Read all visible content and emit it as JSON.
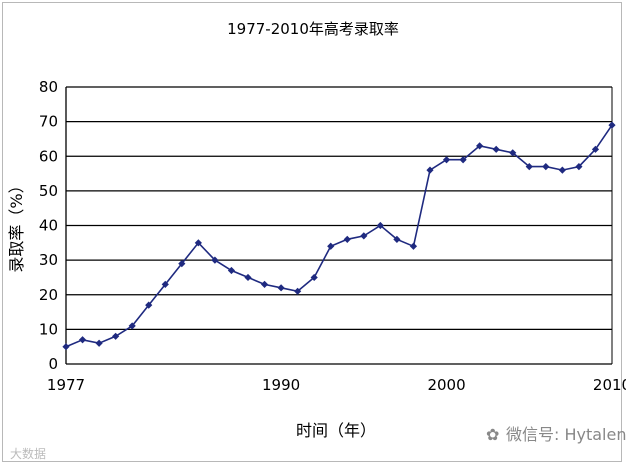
{
  "chart_data": {
    "type": "line",
    "title": "1977-2010年高考录取率",
    "xlabel": "时间（年）",
    "ylabel": "录取率（%）",
    "xlim": [
      1977,
      2010
    ],
    "ylim": [
      0,
      80
    ],
    "yticks": [
      0,
      10,
      20,
      30,
      40,
      50,
      60,
      70,
      80
    ],
    "xticks": [
      1977,
      1990,
      2000,
      2010
    ],
    "grid": "horizontal",
    "line_color": "#1f2a80",
    "series": [
      {
        "x": [
          1977,
          1978,
          1979,
          1980,
          1981,
          1982,
          1983,
          1984,
          1985,
          1986,
          1987,
          1988,
          1989,
          1990,
          1991,
          1992,
          1993,
          1994,
          1995,
          1996,
          1997,
          1998,
          1999,
          2000,
          2001,
          2002,
          2003,
          2004,
          2005,
          2006,
          2007,
          2008,
          2009,
          2010
        ],
        "y": [
          5,
          7,
          6,
          8,
          11,
          17,
          23,
          29,
          35,
          30,
          27,
          25,
          23,
          22,
          21,
          25,
          34,
          36,
          37,
          40,
          36,
          34,
          56,
          59,
          59,
          63,
          62,
          61,
          57,
          57,
          56,
          57,
          62,
          69
        ]
      }
    ]
  },
  "watermarks": {
    "wechat": "微信号: Hytalents",
    "corner": "大数据"
  }
}
